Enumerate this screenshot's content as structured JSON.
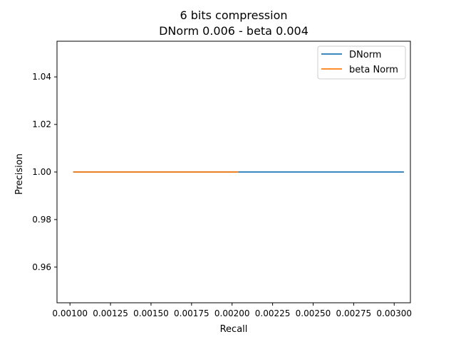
{
  "chart_data": {
    "type": "line",
    "title": "6 bits compression",
    "subtitle": "DNorm 0.006 - beta 0.004",
    "xlabel": "Recall",
    "ylabel": "Precision",
    "xlim": [
      0.00092,
      0.0031
    ],
    "ylim": [
      0.945,
      1.055
    ],
    "x_ticks": [
      0.001,
      0.00125,
      0.0015,
      0.00175,
      0.002,
      0.00225,
      0.0025,
      0.00275,
      0.003
    ],
    "x_tick_labels": [
      "0.00100",
      "0.00125",
      "0.00150",
      "0.00175",
      "0.00200",
      "0.00225",
      "0.00250",
      "0.00275",
      "0.00300"
    ],
    "y_ticks": [
      0.96,
      0.98,
      1.0,
      1.02,
      1.04
    ],
    "y_tick_labels": [
      "0.96",
      "0.98",
      "1.00",
      "1.02",
      "1.04"
    ],
    "grid": false,
    "legend_position": "top-right",
    "series": [
      {
        "name": "DNorm",
        "color": "#1f77b4",
        "x": [
          0.00102,
          0.00306
        ],
        "y": [
          1.0,
          1.0
        ]
      },
      {
        "name": "beta Norm",
        "color": "#ff7f0e",
        "x": [
          0.00102,
          0.00204
        ],
        "y": [
          1.0,
          1.0
        ]
      }
    ]
  }
}
